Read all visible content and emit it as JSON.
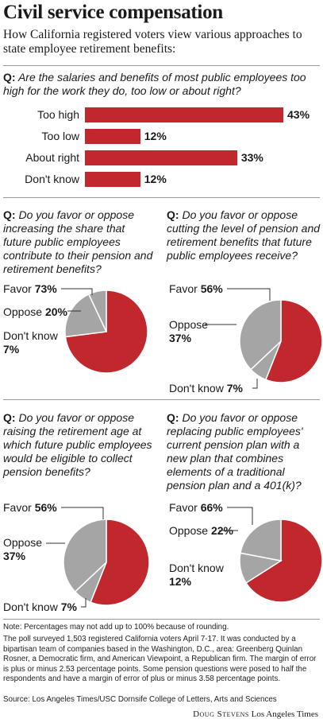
{
  "header": {
    "title": "Civil service compensation",
    "subtitle": "How California registered voters view various approaches to state employee retirement benefits:"
  },
  "q_marker": "Q:",
  "colors": {
    "red": "#c0282d",
    "gray": "#a5a5a5",
    "stroke": "#ffffff"
  },
  "chart_data": [
    {
      "type": "bar",
      "question": "Are the salaries and benefits of most public employees too high for the work they do, too low or about right?",
      "categories": [
        "Too high",
        "Too low",
        "About right",
        "Don't know"
      ],
      "values": [
        43,
        12,
        33,
        12
      ],
      "value_labels": [
        "43%",
        "12%",
        "33%",
        "12%"
      ]
    },
    {
      "type": "pie",
      "question": "Do you favor or oppose increasing the share that future public employees contribute to their pension and retirement benefits?",
      "slices": [
        {
          "label": "Favor",
          "value": 73,
          "value_label": "73%",
          "color": "#c0282d"
        },
        {
          "label": "Oppose",
          "value": 20,
          "value_label": "20%",
          "color": "#a5a5a5"
        },
        {
          "label": "Don't know",
          "value": 7,
          "value_label": "7%",
          "color": "#a5a5a5"
        }
      ]
    },
    {
      "type": "pie",
      "question": "Do you favor or oppose cutting the level of pension and retirement benefits that future public employees receive?",
      "slices": [
        {
          "label": "Favor",
          "value": 56,
          "value_label": "56%",
          "color": "#c0282d"
        },
        {
          "label": "Don't know",
          "value": 7,
          "value_label": "7%",
          "color": "#a5a5a5"
        },
        {
          "label": "Oppose",
          "value": 37,
          "value_label": "37%",
          "color": "#a5a5a5"
        }
      ]
    },
    {
      "type": "pie",
      "question": "Do you favor or oppose raising the retirement age at which future public employees would be eligible to collect pension benefits?",
      "slices": [
        {
          "label": "Favor",
          "value": 56,
          "value_label": "56%",
          "color": "#c0282d"
        },
        {
          "label": "Don't know",
          "value": 7,
          "value_label": "7%",
          "color": "#a5a5a5"
        },
        {
          "label": "Oppose",
          "value": 37,
          "value_label": "37%",
          "color": "#a5a5a5"
        }
      ]
    },
    {
      "type": "pie",
      "question": "Do you favor or oppose replacing public employees' current pension plan with a new plan that combines elements of a traditional pension plan and a 401(k)?",
      "slices": [
        {
          "label": "Favor",
          "value": 66,
          "value_label": "66%",
          "color": "#c0282d"
        },
        {
          "label": "Don't know",
          "value": 12,
          "value_label": "12%",
          "color": "#a5a5a5"
        },
        {
          "label": "Oppose",
          "value": 22,
          "value_label": "22%",
          "color": "#a5a5a5"
        }
      ]
    }
  ],
  "footer": {
    "note": "Note: Percentages may not add up to 100% because of rounding.",
    "methodology": "The poll surveyed 1,503 registered California voters April 7-17. It was conducted by a bipartisan team of companies based in the Washington, D.C., area: Greenberg Quinlan Rosner, a Democratic firm, and American Viewpoint, a Republican firm. The margin of error is plus or minus 2.53 percentage points. Some pension questions were posed to half the respondents and have a margin of error of plus or minus 3.58 percentage points.",
    "source": "Source: Los Angeles Times/USC Dornsife College of Letters, Arts and Sciences",
    "credit_name": "Doug Stevens",
    "credit_org": "Los Angeles Times"
  }
}
